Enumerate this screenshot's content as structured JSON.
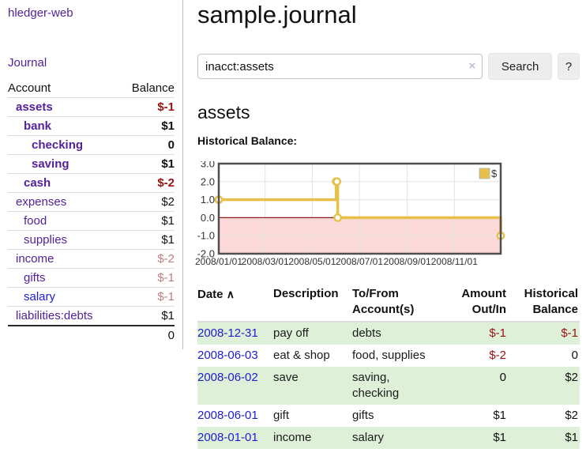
{
  "app": {
    "title": "hledger-web",
    "nav_journal_label": "Journal"
  },
  "sidebar": {
    "header": {
      "account": "Account",
      "balance": "Balance"
    },
    "accounts": [
      {
        "name": "assets",
        "balance": "$-1",
        "depth": 1,
        "bold": true
      },
      {
        "name": "bank",
        "balance": "$1",
        "depth": 2,
        "bold": true
      },
      {
        "name": "checking",
        "balance": "0",
        "depth": 3,
        "bold": true
      },
      {
        "name": "saving",
        "balance": "$1",
        "depth": 3,
        "bold": true
      },
      {
        "name": "cash",
        "balance": "$-2",
        "depth": 2,
        "bold": true
      },
      {
        "name": "expenses",
        "balance": "$2",
        "depth": 1,
        "bold": false
      },
      {
        "name": "food",
        "balance": "$1",
        "depth": 2,
        "bold": false
      },
      {
        "name": "supplies",
        "balance": "$1",
        "depth": 2,
        "bold": false
      },
      {
        "name": "income",
        "balance": "$-2",
        "depth": 1,
        "bold": false
      },
      {
        "name": "gifts",
        "balance": "$-1",
        "depth": 2,
        "bold": false
      },
      {
        "name": "salary",
        "balance": "$-1",
        "depth": 2,
        "bold": false,
        "link_color": "blue"
      },
      {
        "name": "liabilities:debts",
        "balance": "$1",
        "depth": 1,
        "bold": false
      }
    ],
    "total": "0"
  },
  "header": {
    "title": "sample.journal"
  },
  "search": {
    "value": "inacct:assets",
    "clear_icon": "×",
    "button_label": "Search",
    "help_label": "?"
  },
  "account_page": {
    "heading": "assets",
    "chart_label": "Historical Balance:"
  },
  "chart_data": {
    "type": "line",
    "title": "Historical Balance",
    "step": true,
    "series": [
      {
        "name": "$",
        "color": "#e6c04a",
        "x": [
          "2008-01-01",
          "2008-06-01",
          "2008-06-02",
          "2008-06-03",
          "2008-12-31"
        ],
        "values": [
          1,
          2,
          2,
          0,
          -1
        ]
      }
    ],
    "x_range": [
      "2008-01-01",
      "2008-12-31"
    ],
    "x_ticks": [
      "2008/01/01",
      "2008/03/01",
      "2008/05/01",
      "2008/07/01",
      "2008/09/01",
      "2008/11/01"
    ],
    "y_ticks": [
      "3.0",
      "2.0",
      "1.0",
      "0.0",
      "-1.0",
      "-2.0"
    ],
    "ylim": [
      -2,
      3
    ],
    "grid": true,
    "legend": {
      "label": "$",
      "position": "top-right"
    },
    "negative_region_color": "#fbd9d9",
    "zero_line_color": "#8b1c1c"
  },
  "register": {
    "columns": {
      "date": "Date",
      "sort_indicator": "∧",
      "description": "Description",
      "accounts": "To/From Account(s)",
      "amount": "Amount Out/In",
      "balance": "Historical Balance"
    },
    "rows": [
      {
        "date": "2008-12-31",
        "description": "pay off",
        "accounts": "debts",
        "amount": "$-1",
        "balance": "$-1"
      },
      {
        "date": "2008-06-03",
        "description": "eat & shop",
        "accounts": "food, supplies",
        "amount": "$-2",
        "balance": "0"
      },
      {
        "date": "2008-06-02",
        "description": "save",
        "accounts": "saving,\nchecking",
        "amount": "0",
        "balance": "$2"
      },
      {
        "date": "2008-06-01",
        "description": "gift",
        "accounts": "gifts",
        "amount": "$1",
        "balance": "$2"
      },
      {
        "date": "2008-01-01",
        "description": "income",
        "accounts": "salary",
        "amount": "$1",
        "balance": "$1"
      }
    ]
  }
}
